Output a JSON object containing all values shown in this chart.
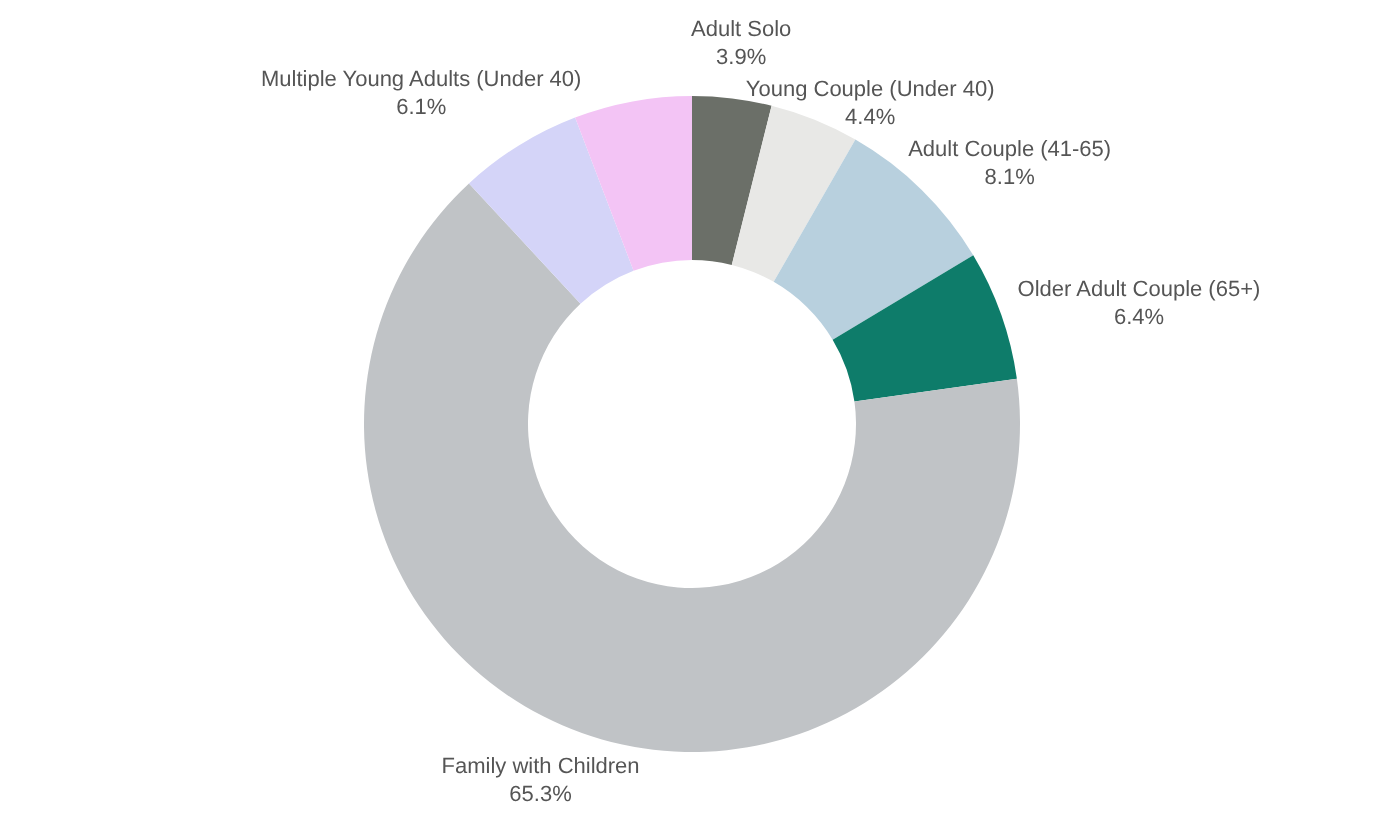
{
  "chart_data": {
    "type": "donut",
    "categories": [
      "Adult Solo",
      "Young Couple (Under 40)",
      "Adult Couple (41-65)",
      "Older Adult Couple (65+)",
      "Family with Children",
      "Multiple Young Adults (Under 40)",
      null
    ],
    "values": [
      3.9,
      4.4,
      8.1,
      6.4,
      65.3,
      6.1,
      5.8
    ],
    "value_labels": [
      "3.9%",
      "4.4%",
      "8.1%",
      "6.4%",
      "65.3%",
      "6.1%",
      null
    ],
    "colors": [
      "#6b6f68",
      "#e8e8e6",
      "#b8d0de",
      "#0e7c6a",
      "#c0c3c6",
      "#d4d4f8",
      "#f3c4f5"
    ],
    "legend": false
  }
}
